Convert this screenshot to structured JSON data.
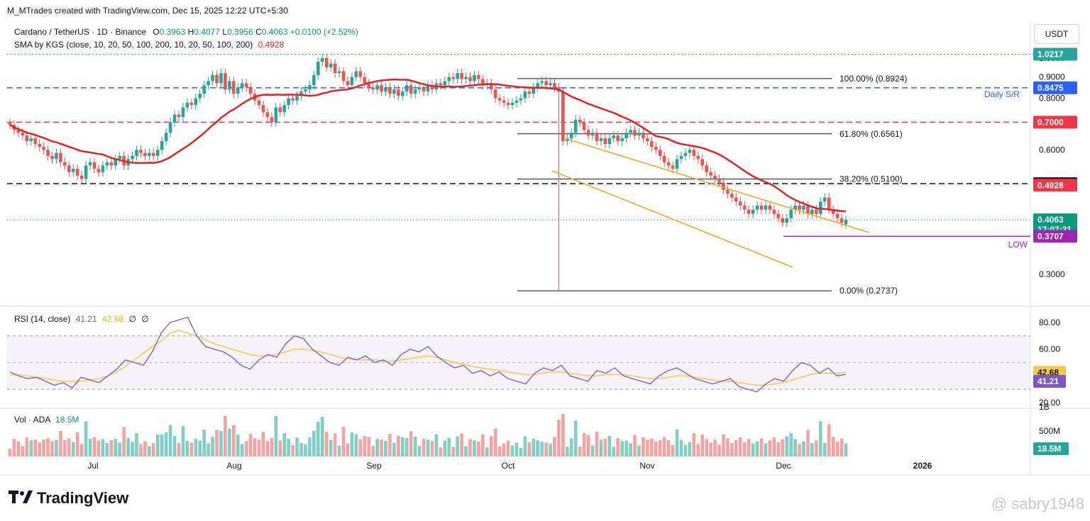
{
  "top_caption": "M_MTrades created with TradingView.com, Dec 15, 2025 12:22 UTC+5:30",
  "symbol_line": {
    "symbol": "Cardano / TetherUS · 1D · Binance",
    "o_label": "O",
    "o": "0.3963",
    "h_label": "H",
    "h": "0.4077",
    "l_label": "L",
    "l": "0.3956",
    "c_label": "C",
    "c": "0.4063",
    "chg": "+0.0100 (+2.52%)"
  },
  "sma_line": {
    "label": "SMA by KGS (close, 10, 20, 50, 100, 200, 10, 20, 50, 100, 200)",
    "value": "0.4928"
  },
  "currency_button": "USDT",
  "rsi_header": {
    "label": "RSI (14, close)",
    "v1": "41.21",
    "v2": "42.68",
    "v3": "∅",
    "v4": "∅"
  },
  "vol_header": {
    "label": "Vol · ADA",
    "value": "18.5M"
  },
  "logo_text": "TradingView",
  "watermark": "@ sabry1948",
  "colors": {
    "up": "#26a69a",
    "down": "#ef5350",
    "sma": "#e02424",
    "channel": "#f5a623",
    "support": "#2962ff",
    "rsi": "#7e57c2",
    "rsi_ma": "#f7c948",
    "low_line": "#9c27b0"
  },
  "chart_data": [
    {
      "type": "candlestick",
      "title": "Cardano / TetherUS · 1D · Binance",
      "x_ticks": [
        "Jul",
        "Aug",
        "Sep",
        "Oct",
        "Nov",
        "Dec",
        "2026"
      ],
      "y_ticks": [
        "1.0000",
        "0.9000",
        "0.8000",
        "0.7000",
        "0.6000",
        "0.3000"
      ],
      "log_scale": true,
      "ohlc_close": [
        0.69,
        0.67,
        0.66,
        0.65,
        0.63,
        0.64,
        0.62,
        0.61,
        0.6,
        0.58,
        0.57,
        0.59,
        0.56,
        0.55,
        0.53,
        0.54,
        0.52,
        0.51,
        0.55,
        0.56,
        0.54,
        0.53,
        0.55,
        0.56,
        0.55,
        0.57,
        0.58,
        0.55,
        0.57,
        0.58,
        0.6,
        0.59,
        0.58,
        0.59,
        0.58,
        0.6,
        0.63,
        0.66,
        0.7,
        0.73,
        0.72,
        0.76,
        0.78,
        0.77,
        0.8,
        0.82,
        0.86,
        0.88,
        0.91,
        0.87,
        0.92,
        0.84,
        0.88,
        0.82,
        0.85,
        0.87,
        0.85,
        0.82,
        0.79,
        0.77,
        0.74,
        0.72,
        0.7,
        0.76,
        0.74,
        0.77,
        0.8,
        0.79,
        0.81,
        0.83,
        0.84,
        0.86,
        0.91,
        0.98,
        1.0,
        0.95,
        0.97,
        0.92,
        0.93,
        0.88,
        0.86,
        0.9,
        0.93,
        0.9,
        0.87,
        0.85,
        0.84,
        0.86,
        0.83,
        0.85,
        0.82,
        0.84,
        0.81,
        0.83,
        0.86,
        0.82,
        0.84,
        0.85,
        0.83,
        0.86,
        0.84,
        0.87,
        0.86,
        0.88,
        0.9,
        0.89,
        0.92,
        0.89,
        0.9,
        0.88,
        0.91,
        0.89,
        0.86,
        0.87,
        0.84,
        0.8,
        0.79,
        0.78,
        0.77,
        0.78,
        0.79,
        0.8,
        0.83,
        0.82,
        0.85,
        0.87,
        0.88,
        0.86,
        0.87,
        0.85,
        0.83,
        0.63,
        0.64,
        0.66,
        0.71,
        0.7,
        0.67,
        0.65,
        0.66,
        0.63,
        0.64,
        0.62,
        0.64,
        0.65,
        0.63,
        0.64,
        0.66,
        0.67,
        0.65,
        0.66,
        0.64,
        0.63,
        0.61,
        0.6,
        0.58,
        0.56,
        0.55,
        0.54,
        0.57,
        0.58,
        0.59,
        0.6,
        0.58,
        0.57,
        0.55,
        0.53,
        0.52,
        0.51,
        0.5,
        0.48,
        0.47,
        0.46,
        0.45,
        0.44,
        0.43,
        0.42,
        0.43,
        0.44,
        0.43,
        0.44,
        0.43,
        0.42,
        0.41,
        0.4,
        0.41,
        0.43,
        0.44,
        0.43,
        0.44,
        0.42,
        0.43,
        0.42,
        0.45,
        0.46,
        0.43,
        0.42,
        0.41,
        0.4,
        0.4063
      ],
      "sma50_color": "#e02424",
      "fib_levels": [
        {
          "label": "100.00% (0.8924)",
          "value": 0.8924
        },
        {
          "label": "61.80% (0.6561)",
          "value": 0.6561
        },
        {
          "label": "38.20% (0.5100)",
          "value": 0.51
        },
        {
          "label": "0.00% (0.2737)",
          "value": 0.2737
        }
      ],
      "annotations": [
        "Daily S/R",
        "LOW"
      ],
      "price_labels": [
        {
          "text": "1.0217",
          "value": 1.0217,
          "color": "#26a69a"
        },
        {
          "text": "0.8475",
          "value": 0.8475,
          "color": "#2962ff"
        },
        {
          "text": "0.7000",
          "value": 0.7,
          "color": "#f23645"
        },
        {
          "text": "0.4969",
          "value": 0.4969,
          "color": "#131722"
        },
        {
          "text": "0.4928",
          "value": 0.4928,
          "color": "#f23645"
        },
        {
          "text": "0.4063",
          "value": 0.4063,
          "color": "#089981"
        },
        {
          "text": "17:07:31",
          "value": 0.39,
          "color": "#089981"
        },
        {
          "text": "0.3707",
          "value": 0.3707,
          "color": "#9c27b0"
        }
      ],
      "horizontal_lines": {
        "support_blue": 0.8475,
        "resistance_red": 0.7,
        "dashed_black": 0.4969,
        "low_purple": 0.3707
      }
    },
    {
      "type": "line",
      "title": "RSI (14, close)",
      "y_ticks": [
        "80.00",
        "60.00",
        "20.00"
      ],
      "ylim": [
        20,
        90
      ],
      "series": [
        {
          "name": "RSI",
          "values": [
            43,
            40,
            38,
            39,
            36,
            33,
            35,
            31,
            39,
            37,
            35,
            40,
            45,
            52,
            50,
            48,
            58,
            72,
            80,
            82,
            84,
            70,
            62,
            60,
            58,
            54,
            48,
            45,
            52,
            56,
            54,
            64,
            70,
            68,
            60,
            55,
            50,
            48,
            54,
            52,
            55,
            50,
            52,
            48,
            56,
            60,
            58,
            62,
            55,
            50,
            46,
            48,
            42,
            44,
            40,
            43,
            38,
            36,
            34,
            42,
            46,
            44,
            48,
            40,
            38,
            36,
            44,
            42,
            46,
            40,
            38,
            36,
            34,
            40,
            44,
            46,
            42,
            38,
            36,
            34,
            36,
            38,
            32,
            30,
            28,
            34,
            38,
            36,
            44,
            50,
            48,
            42,
            46,
            40,
            41.21
          ]
        },
        {
          "name": "MA",
          "values": [
            41,
            41,
            40,
            39,
            38,
            37,
            36,
            36,
            36,
            37,
            38,
            40,
            43,
            47,
            52,
            57,
            62,
            66,
            72,
            74,
            72,
            70,
            67,
            64,
            62,
            60,
            58,
            56,
            55,
            55,
            56,
            58,
            60,
            60,
            59,
            58,
            56,
            54,
            53,
            52,
            52,
            52,
            51,
            51,
            52,
            53,
            54,
            55,
            54,
            52,
            50,
            49,
            47,
            46,
            45,
            44,
            43,
            42,
            41,
            41,
            42,
            43,
            43,
            42,
            41,
            40,
            40,
            41,
            41,
            41,
            40,
            39,
            38,
            38,
            39,
            40,
            40,
            39,
            38,
            37,
            36,
            36,
            35,
            34,
            33,
            33,
            34,
            35,
            37,
            39,
            41,
            42,
            42,
            42,
            42.68
          ]
        }
      ],
      "bands": [
        30,
        70
      ]
    },
    {
      "type": "bar",
      "title": "Vol · ADA",
      "y_ticks": [
        "1B",
        "500M"
      ],
      "last_value": "18.5M"
    }
  ]
}
